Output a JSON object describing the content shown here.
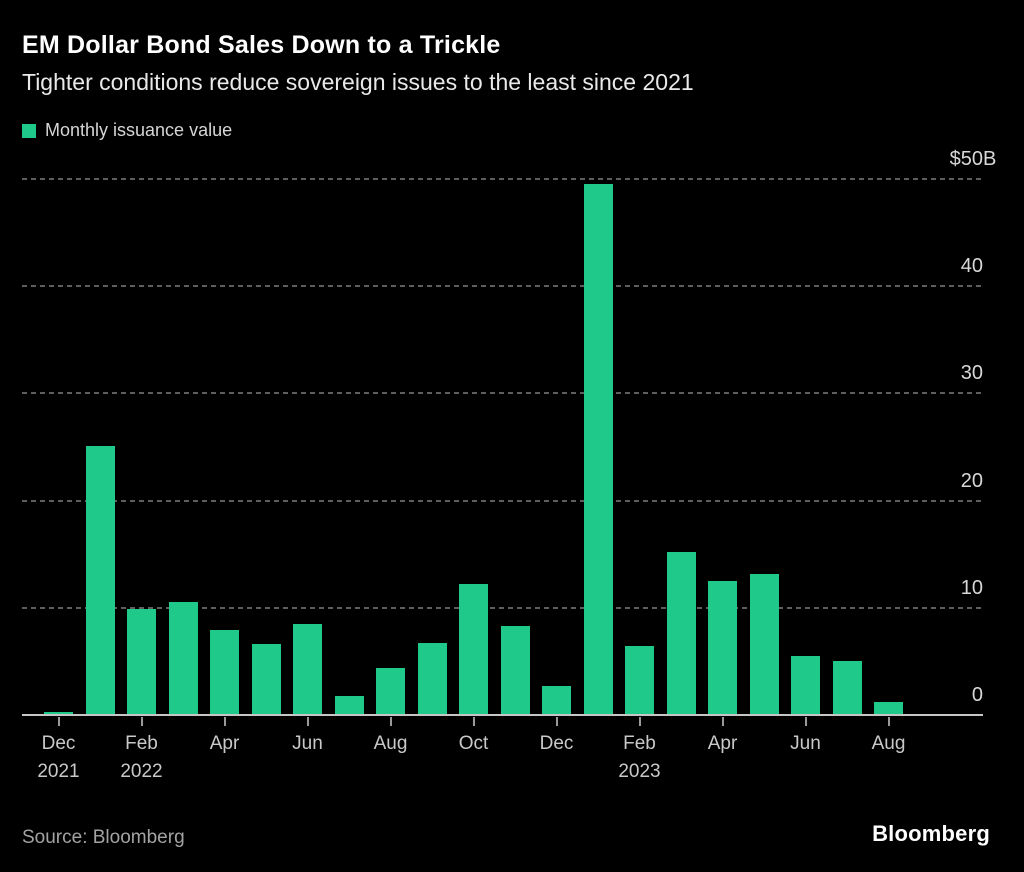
{
  "header": {
    "title": "EM Dollar Bond Sales Down to a Trickle",
    "subtitle": "Tighter conditions reduce sovereign issues to the least since 2021"
  },
  "legend": {
    "label": "Monthly issuance value",
    "swatch_color": "#1ec98a"
  },
  "footer": {
    "source": "Source: Bloomberg",
    "logo": "Bloomberg"
  },
  "colors": {
    "background": "#000000",
    "bar": "#1ec98a",
    "gridline": "#5e5e5e",
    "baseline": "#c6c6c6",
    "tick": "#9a9a9a",
    "y_label": "#d8d8d8",
    "x_label": "#c9c9c9",
    "title": "#ffffff",
    "subtitle": "#e9e9e9"
  },
  "chart_data": {
    "type": "bar",
    "title": "EM Dollar Bond Sales Down to a Trickle",
    "subtitle": "Tighter conditions reduce sovereign issues to the least since 2021",
    "unit": "USD billions",
    "legend": [
      "Monthly issuance value"
    ],
    "legend_position": "top-left",
    "grid": "horizontal-dashed",
    "ylim": [
      0,
      50
    ],
    "categories": [
      "Dec 2021",
      "Jan 2022",
      "Feb 2022",
      "Mar 2022",
      "Apr 2022",
      "May 2022",
      "Jun 2022",
      "Jul 2022",
      "Aug 2022",
      "Sep 2022",
      "Oct 2022",
      "Nov 2022",
      "Dec 2022",
      "Jan 2023",
      "Feb 2023",
      "Mar 2023",
      "Apr 2023",
      "May 2023",
      "Jun 2023",
      "Jul 2023",
      "Aug 2023"
    ],
    "values": [
      0.3,
      25.1,
      9.9,
      10.5,
      7.9,
      6.6,
      8.5,
      1.8,
      4.4,
      6.7,
      12.2,
      8.3,
      2.7,
      49.5,
      6.4,
      15.2,
      12.5,
      13.2,
      5.5,
      5.0,
      1.2
    ],
    "y_axis": {
      "side": "right",
      "ticks": [
        {
          "text": "$50",
          "suffix": "B",
          "value": 50
        },
        {
          "text": "40",
          "value": 40
        },
        {
          "text": "30",
          "value": 30
        },
        {
          "text": "20",
          "value": 20
        },
        {
          "text": "10",
          "value": 10
        },
        {
          "text": "0",
          "value": 0
        }
      ]
    },
    "x_axis": {
      "tick_every_n_months": 2,
      "ticks": [
        {
          "month": "Dec",
          "year": "2021"
        },
        {
          "month": "Feb",
          "year": "2022"
        },
        {
          "month": "Apr"
        },
        {
          "month": "Jun"
        },
        {
          "month": "Aug"
        },
        {
          "month": "Oct"
        },
        {
          "month": "Dec"
        },
        {
          "month": "Feb",
          "year": "2023"
        },
        {
          "month": "Apr"
        },
        {
          "month": "Jun"
        },
        {
          "month": "Aug"
        }
      ]
    }
  }
}
